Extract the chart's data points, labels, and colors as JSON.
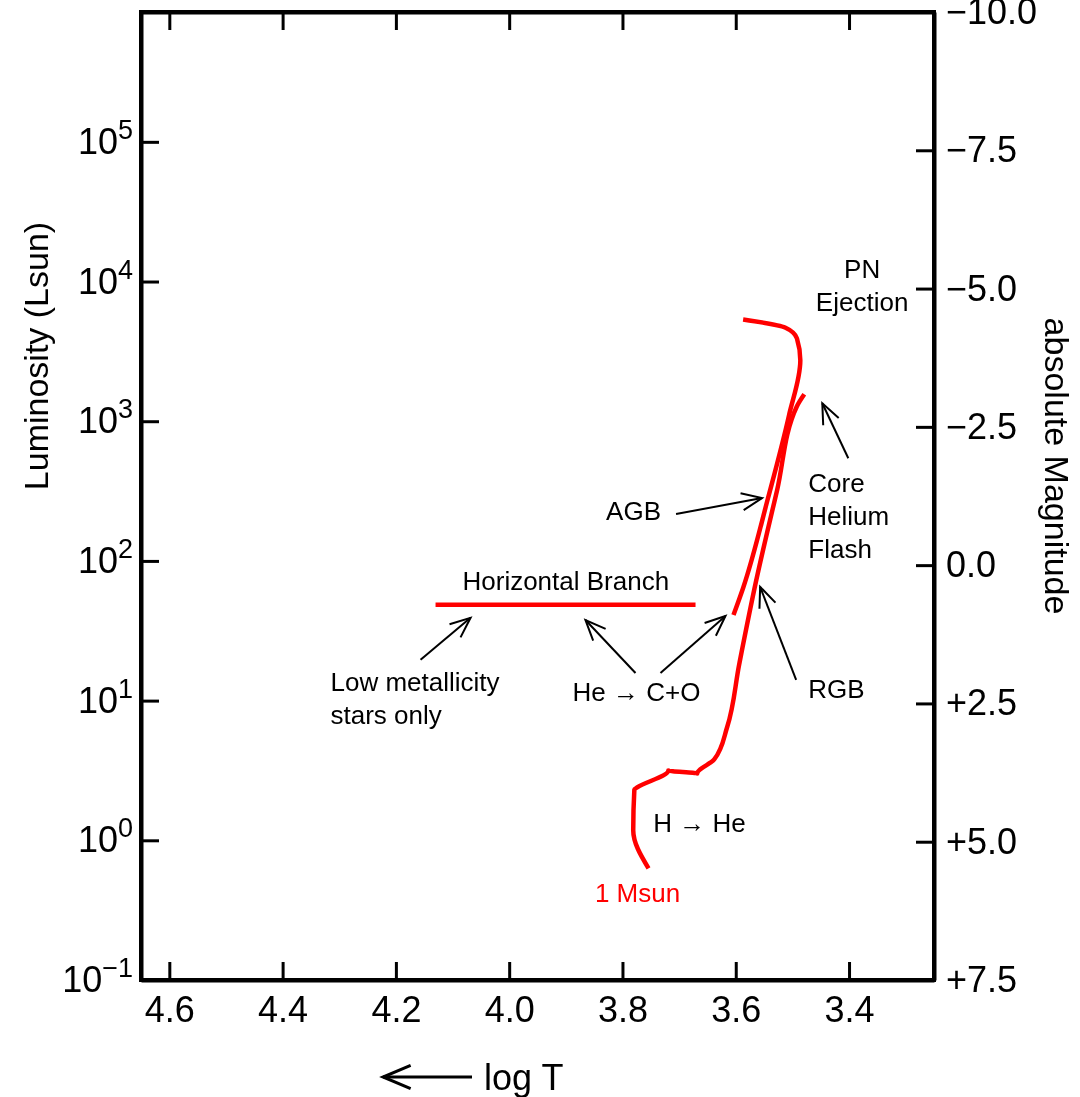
{
  "chart_data": {
    "type": "line",
    "xlabel": "log T",
    "ylabel": "Luminosity (Lsun)",
    "y2label": "absolute Magnitude",
    "xlim": [
      4.65,
      3.25
    ],
    "xticks": [
      4.6,
      4.4,
      4.2,
      {
        "value": 4.0,
        "label": "4.0"
      },
      3.8,
      3.6,
      3.4
    ],
    "ylim": [
      0.1,
      850000
    ],
    "log": "y",
    "yticks": [
      {
        "value": 0.1,
        "label": "10$^{−1}$"
      },
      {
        "value": 1,
        "label": "10$^{0}$"
      },
      {
        "value": 10,
        "label": "10$^{1}$"
      },
      {
        "value": 100,
        "label": "10$^{2}$"
      },
      {
        "value": 1000,
        "label": "10$^{3}$"
      },
      {
        "value": 10000,
        "label": "10$^{4}$"
      },
      {
        "value": 100000,
        "label": "10$^{5}$"
      }
    ],
    "y2lim": [
      7.5,
      -10.0
    ],
    "y2ticks": [
      {
        "value": -10,
        "label": "−10.0"
      },
      {
        "value": -7.5,
        "label": "−7.5"
      },
      {
        "value": -5,
        "label": "−5.0"
      },
      {
        "value": -2.5,
        "label": "−2.5"
      },
      {
        "value": 0,
        "label": "0.0"
      },
      {
        "value": 2.5,
        "label": "+2.5"
      },
      {
        "value": 5,
        "label": "+5.0"
      },
      {
        "value": 7.5,
        "label": "+7.5"
      }
    ],
    "series": [
      {
        "name": "1 Msun",
        "color": "#ff0000",
        "x": [
          3.754,
          3.781,
          3.779,
          3.774,
          3.719,
          3.668,
          3.638,
          3.615,
          3.594,
          3.564,
          3.527,
          3.492,
          3.479
        ],
        "values": [
          0.63,
          1.18,
          2.31,
          2.39,
          3.16,
          3.01,
          3.79,
          6.5,
          18.1,
          72,
          321,
          1280,
          1560
        ]
      },
      {
        "color": "#ff0000",
        "x": [
          3.604,
          3.587,
          3.543,
          3.506,
          3.486,
          3.492,
          3.513,
          3.587
        ],
        "values": [
          41,
          64,
          282,
          1100,
          2730,
          3920,
          4690,
          5350
        ]
      },
      {
        "color": "#ff0000",
        "x": [
          4.13,
          3.671
        ],
        "values": [
          48.5,
          48.5
        ]
      }
    ],
    "annotations": [
      {
        "text": "PN\nEjection",
        "x": 3.587,
        "y": 5350
      },
      {
        "text": "Core\nHelium\nFlash",
        "x": 3.479,
        "y": 1560
      },
      {
        "text": "AGB",
        "x": 3.543,
        "y": 282
      },
      {
        "text": "Horizontal Branch",
        "x": 3.9,
        "y": 48.5
      },
      {
        "text": "Low metallicity\nstars only",
        "x": 4.13,
        "y": 48.5
      },
      {
        "text": "He → C+O",
        "x": 3.604,
        "y": 41
      },
      {
        "text": "RGB",
        "x": 3.564,
        "y": 72
      },
      {
        "text": "H → He",
        "x": 3.781,
        "y": 1.18
      }
    ]
  }
}
